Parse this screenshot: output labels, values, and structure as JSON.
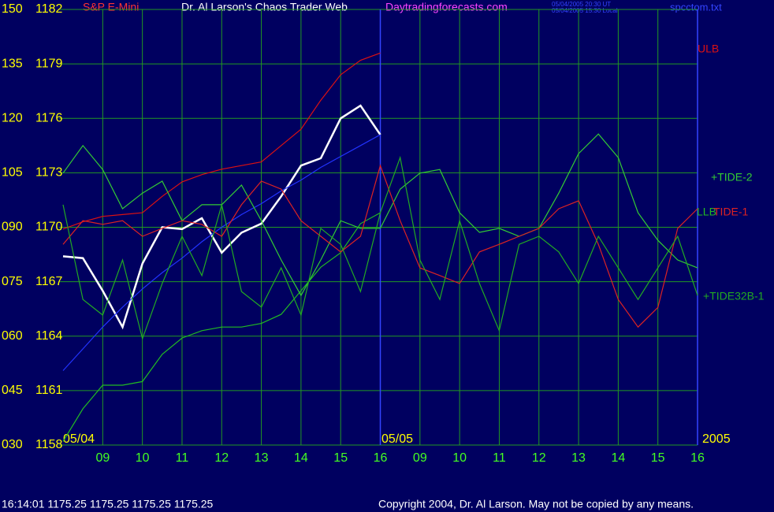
{
  "chart_data": {
    "type": "line",
    "title": "Dr. Al Larson's Chaos Trader Web",
    "subtitle": "Daytradingforecasts.com",
    "timestamps": [
      "05/04/2005 20:30 UT",
      "05/04/2005 15:30 Local"
    ],
    "file": "spcctom.txt",
    "date_labels": [
      "05/04",
      "05/05",
      "2005"
    ],
    "quote": "16:14:01  1175.25 1175.25 1175.25 1175.25",
    "copyright": "Copyright 2004, Dr. Al Larson. May not be copied by any means.",
    "x": [
      8,
      8.5,
      9,
      9.5,
      10,
      10.5,
      11,
      11.5,
      12,
      12.5,
      13,
      13.5,
      14,
      14.5,
      15,
      15.5,
      16,
      16.5,
      17,
      17.5,
      18,
      18.5,
      19,
      19.5,
      20,
      20.5,
      21,
      21.5,
      22,
      22.5,
      23,
      23.5,
      24
    ],
    "xlim": [
      7.9,
      24
    ],
    "xticks": [
      {
        "value": 9,
        "label": "09"
      },
      10,
      11,
      12,
      13,
      14,
      15,
      16,
      {
        "value": 17,
        "label": "09"
      },
      {
        "value": 18,
        "label": "10"
      },
      {
        "value": 19,
        "label": "11"
      },
      {
        "value": 20,
        "label": "12"
      },
      {
        "value": 21,
        "label": "13"
      },
      {
        "value": 22,
        "label": "14"
      },
      {
        "value": 23,
        "label": "15"
      },
      {
        "value": 24,
        "label": "16"
      }
    ],
    "ylim": [
      30,
      150
    ],
    "yticks": [
      {
        "value": 30,
        "label": "030"
      },
      {
        "value": 45,
        "label": "045"
      },
      {
        "value": 60,
        "label": "060"
      },
      {
        "value": 75,
        "label": "075"
      },
      {
        "value": 90,
        "label": "090"
      },
      105,
      120,
      135,
      150
    ],
    "y2lim": [
      1158,
      1182
    ],
    "y2ticks": [
      1158,
      1161,
      1164,
      1167,
      1170,
      1173,
      1176,
      1179,
      1182
    ],
    "grid": true,
    "series": [
      {
        "name": "S&P E-Mini",
        "color": "#ffffff",
        "axis": "y2",
        "values": [
          1168.4,
          1168.3,
          1166.5,
          1164.5,
          1168.0,
          1170.0,
          1169.9,
          1170.5,
          1168.6,
          1169.7,
          1170.2,
          1171.7,
          1173.4,
          1173.8,
          1176.0,
          1176.7,
          1175.1,
          null,
          null,
          null,
          null,
          null,
          null,
          null,
          null,
          null,
          null,
          null,
          null,
          null,
          null,
          null,
          null
        ]
      },
      {
        "name": "ULB",
        "color": "#dd1111",
        "axis": "y2",
        "values": [
          1169.9,
          1170.3,
          1170.6,
          1170.7,
          1170.8,
          1171.7,
          1172.5,
          1172.9,
          1173.2,
          1173.4,
          1173.6,
          1174.5,
          1175.4,
          1177.0,
          1178.4,
          1179.2,
          1179.6,
          null,
          null,
          null,
          null,
          null,
          null,
          null,
          null,
          null,
          null,
          null,
          null,
          null,
          null,
          null,
          null
        ]
      },
      {
        "name": "LLB",
        "color": "#22bb22",
        "axis": "y2",
        "values": [
          1158.2,
          1160.0,
          1161.3,
          1161.3,
          1161.5,
          1163.0,
          1163.9,
          1164.3,
          1164.5,
          1164.5,
          1164.7,
          1165.2,
          1166.5,
          1167.8,
          1168.6,
          1170.2,
          1170.8,
          null,
          null,
          null,
          null,
          null,
          null,
          null,
          null,
          null,
          null,
          null,
          null,
          null,
          null,
          null,
          null
        ]
      },
      {
        "color": "#2233ff",
        "axis": "y2",
        "values": [
          1162.1,
          1163.3,
          1164.5,
          1165.6,
          1166.6,
          1167.5,
          1168.3,
          1169.2,
          1170.0,
          1170.7,
          1171.3,
          1172.0,
          1172.6,
          1173.3,
          1173.9,
          1174.5,
          1175.1,
          null,
          null,
          null,
          null,
          null,
          null,
          null,
          null,
          null,
          null,
          null,
          null,
          null,
          null,
          null,
          null
        ]
      },
      {
        "name": "+TIDE-2",
        "color": "#33cc33",
        "values": [
          104.9,
          112.5,
          105.9,
          95.1,
          99.4,
          102.7,
          91.8,
          96.2,
          96.2,
          101.6,
          91.8,
          81.0,
          71.2,
          81.0,
          91.8,
          89.7,
          89.7,
          100.5,
          104.9,
          105.9,
          94.0,
          88.6,
          89.7,
          87.5,
          89.7,
          99.4,
          110.3,
          115.7,
          109.2,
          94.0,
          86.4,
          81.0,
          78.8
        ]
      },
      {
        "name": "TIDE-1",
        "color": "#dd2222",
        "values": [
          85.3,
          91.8,
          90.8,
          91.8,
          87.5,
          89.7,
          91.8,
          90.8,
          87.5,
          96.2,
          102.7,
          100.5,
          91.8,
          87.5,
          83.2,
          87.5,
          107.0,
          91.8,
          78.8,
          76.7,
          74.5,
          83.2,
          85.3,
          87.5,
          89.7,
          95.1,
          97.3,
          85.3,
          70.1,
          62.5,
          67.9,
          89.7,
          95.1
        ]
      },
      {
        "name": "+TIDE32B-1",
        "color": "#22aa22",
        "values": [
          96.2,
          70.1,
          65.8,
          81.0,
          59.3,
          74.5,
          87.5,
          76.7,
          96.2,
          72.3,
          68.0,
          78.8,
          65.8,
          89.7,
          85.3,
          72.3,
          94.0,
          109.2,
          81.0,
          70.1,
          91.8,
          74.5,
          61.5,
          85.3,
          87.5,
          83.2,
          74.5,
          87.5,
          78.8,
          70.1,
          78.8,
          87.5,
          71.2
        ]
      }
    ]
  }
}
